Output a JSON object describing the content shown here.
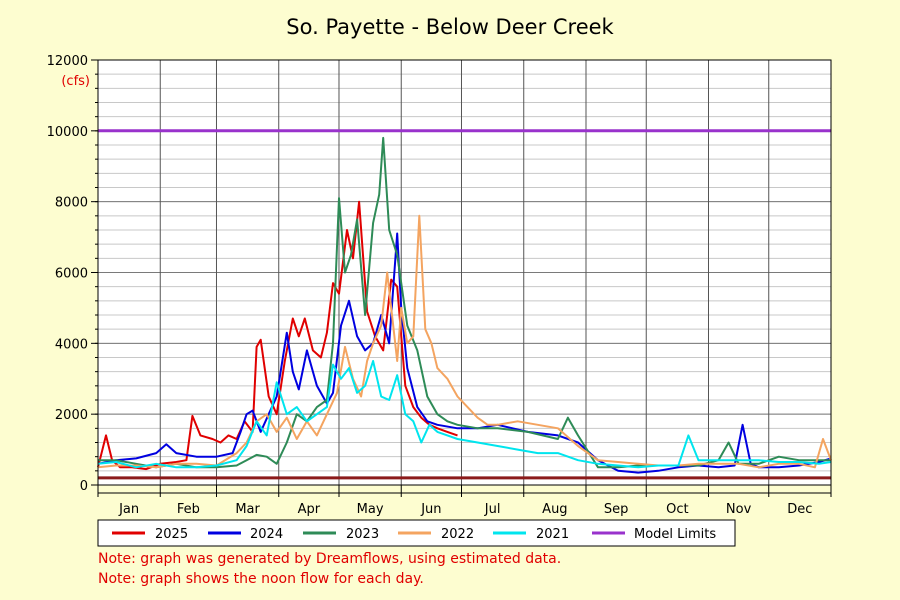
{
  "chart_data": {
    "type": "line",
    "title": "So. Payette - Below Deer Creek",
    "ylabel": "(cfs)",
    "xlabel": "",
    "ylim": [
      0,
      12000
    ],
    "yticks": [
      0,
      2000,
      4000,
      6000,
      8000,
      10000,
      12000
    ],
    "x_unit": "day of year",
    "xlim": [
      1,
      366
    ],
    "months": [
      "Jan",
      "Feb",
      "Mar",
      "Apr",
      "May",
      "Jun",
      "Jul",
      "Aug",
      "Sep",
      "Oct",
      "Nov",
      "Dec"
    ],
    "grid": true,
    "legend_placement": "bottom",
    "series": [
      {
        "name": "2025",
        "color": "#e00000",
        "x": [
          1,
          5,
          8,
          12,
          18,
          25,
          32,
          40,
          45,
          48,
          52,
          58,
          62,
          66,
          70,
          74,
          78,
          80,
          82,
          86,
          90,
          94,
          98,
          101,
          104,
          108,
          112,
          115,
          118,
          121,
          125,
          128,
          131,
          135,
          139,
          143,
          147,
          150,
          154,
          158,
          162,
          166,
          170,
          175,
          180
        ],
        "y": [
          500,
          1400,
          700,
          500,
          500,
          450,
          600,
          650,
          700,
          1950,
          1400,
          1300,
          1200,
          1400,
          1300,
          1800,
          1500,
          3900,
          4100,
          2500,
          2000,
          3500,
          4700,
          4200,
          4700,
          3800,
          3600,
          4300,
          5700,
          5400,
          7200,
          6400,
          8000,
          4900,
          4200,
          3800,
          5800,
          5600,
          2800,
          2200,
          1900,
          1700,
          1600,
          1500,
          1400
        ]
      },
      {
        "name": "2024",
        "color": "#0000e0",
        "x": [
          1,
          10,
          20,
          30,
          35,
          40,
          50,
          60,
          68,
          72,
          75,
          78,
          82,
          86,
          90,
          95,
          98,
          101,
          105,
          110,
          115,
          118,
          122,
          126,
          130,
          134,
          138,
          142,
          146,
          150,
          152,
          155,
          160,
          165,
          170,
          180,
          190,
          200,
          215,
          230,
          240,
          250,
          260,
          270,
          280,
          290,
          300,
          310,
          318,
          322,
          326,
          330,
          340,
          350,
          360,
          366
        ],
        "y": [
          600,
          700,
          750,
          900,
          1150,
          900,
          800,
          800,
          900,
          1500,
          2000,
          2100,
          1500,
          2000,
          2500,
          4300,
          3200,
          2700,
          3800,
          2800,
          2300,
          2600,
          4500,
          5200,
          4200,
          3800,
          4000,
          4800,
          4000,
          7100,
          5000,
          3300,
          2200,
          1800,
          1700,
          1600,
          1600,
          1700,
          1500,
          1400,
          1200,
          700,
          400,
          350,
          400,
          500,
          550,
          500,
          550,
          1700,
          600,
          500,
          500,
          550,
          650,
          750
        ]
      },
      {
        "name": "2023",
        "color": "#2e8b57",
        "x": [
          1,
          10,
          20,
          30,
          40,
          50,
          60,
          70,
          75,
          80,
          85,
          90,
          95,
          100,
          105,
          110,
          115,
          118,
          121,
          124,
          127,
          130,
          134,
          138,
          141,
          143,
          146,
          150,
          155,
          160,
          165,
          170,
          175,
          180,
          190,
          200,
          215,
          230,
          235,
          240,
          250,
          260,
          270,
          280,
          290,
          300,
          310,
          315,
          320,
          330,
          340,
          350,
          360,
          366
        ],
        "y": [
          700,
          700,
          600,
          500,
          600,
          500,
          500,
          550,
          700,
          850,
          800,
          600,
          1200,
          2000,
          1800,
          2200,
          2400,
          4000,
          8100,
          6000,
          6500,
          7500,
          4800,
          7400,
          8200,
          9800,
          7200,
          6500,
          4500,
          3800,
          2500,
          2000,
          1800,
          1700,
          1600,
          1600,
          1500,
          1300,
          1900,
          1400,
          500,
          500,
          550,
          550,
          550,
          550,
          700,
          1200,
          600,
          600,
          800,
          700,
          700,
          700
        ]
      },
      {
        "name": "2022",
        "color": "#f4a460",
        "x": [
          1,
          10,
          20,
          30,
          40,
          50,
          60,
          70,
          75,
          80,
          85,
          90,
          95,
          100,
          105,
          110,
          115,
          120,
          124,
          128,
          132,
          135,
          138,
          142,
          145,
          150,
          152,
          155,
          158,
          161,
          164,
          167,
          170,
          175,
          180,
          185,
          190,
          195,
          200,
          210,
          220,
          230,
          240,
          250,
          260,
          270,
          280,
          290,
          300,
          310,
          320,
          330,
          340,
          350,
          358,
          362,
          366
        ],
        "y": [
          500,
          550,
          550,
          500,
          600,
          600,
          550,
          900,
          1200,
          1800,
          2000,
          1500,
          1900,
          1300,
          1800,
          1400,
          2000,
          2600,
          3900,
          3000,
          2500,
          3500,
          4000,
          4500,
          6000,
          3500,
          5000,
          4000,
          4200,
          7600,
          4400,
          4000,
          3300,
          3000,
          2500,
          2200,
          1900,
          1700,
          1700,
          1800,
          1700,
          1600,
          1100,
          700,
          650,
          600,
          550,
          550,
          600,
          600,
          600,
          500,
          600,
          600,
          500,
          1300,
          700
        ]
      },
      {
        "name": "2021",
        "color": "#00e5ee",
        "x": [
          1,
          10,
          20,
          30,
          40,
          50,
          60,
          70,
          75,
          80,
          85,
          90,
          95,
          100,
          105,
          110,
          115,
          118,
          122,
          126,
          130,
          134,
          138,
          142,
          146,
          150,
          154,
          158,
          162,
          166,
          170,
          175,
          180,
          190,
          200,
          210,
          220,
          230,
          240,
          250,
          260,
          270,
          280,
          290,
          295,
          300,
          310,
          320,
          330,
          340,
          350,
          360,
          366
        ],
        "y": [
          600,
          650,
          500,
          600,
          500,
          500,
          550,
          700,
          1100,
          1800,
          1400,
          2900,
          2000,
          2200,
          1800,
          2000,
          2200,
          3400,
          3000,
          3300,
          2600,
          2800,
          3500,
          2500,
          2400,
          3100,
          2000,
          1800,
          1200,
          1700,
          1500,
          1400,
          1300,
          1200,
          1100,
          1000,
          900,
          900,
          700,
          600,
          550,
          500,
          550,
          550,
          1400,
          700,
          700,
          700,
          700,
          650,
          650,
          600,
          650
        ]
      },
      {
        "name": "Model Limits",
        "color": "#9932cc",
        "x": [
          1,
          366
        ],
        "y": [
          10000,
          10000
        ]
      },
      {
        "name": "",
        "color": "#8b1a1a",
        "x": [
          1,
          366
        ],
        "y": [
          200,
          200
        ]
      }
    ],
    "legend_entries": [
      {
        "name": "2025",
        "color": "#e00000"
      },
      {
        "name": "2024",
        "color": "#0000e0"
      },
      {
        "name": "2023",
        "color": "#2e8b57"
      },
      {
        "name": "2022",
        "color": "#f4a460"
      },
      {
        "name": "2021",
        "color": "#00e5ee"
      },
      {
        "name": "Model Limits",
        "color": "#9932cc"
      },
      {
        "name": "",
        "color": "#8b1a1a"
      }
    ],
    "notes": [
      "Note: graph was generated by Dreamflows, using estimated data.",
      "Note: graph shows the noon flow for each day."
    ]
  }
}
